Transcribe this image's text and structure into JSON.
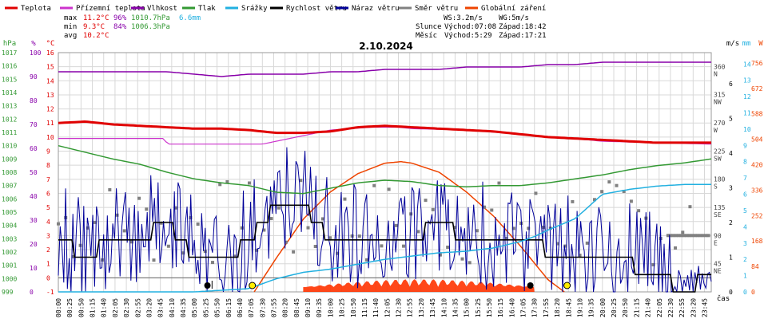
{
  "legend": [
    {
      "label": "Teplota",
      "color": "#e00000"
    },
    {
      "label": "Přízemní teplota",
      "color": "#cc33cc"
    },
    {
      "label": "Vlhkost",
      "color": "#8800aa"
    },
    {
      "label": "Tlak",
      "color": "#339933"
    },
    {
      "label": "Srážky",
      "color": "#22b0e0"
    },
    {
      "label": "Rychlost větru",
      "color": "#000000"
    },
    {
      "label": "Náraz větru",
      "color": "#000099"
    },
    {
      "label": "Směr větru",
      "color": "#808080"
    },
    {
      "label": "Globální záření",
      "color": "#ee4400"
    }
  ],
  "stats": {
    "max_label": "max",
    "max_temp": "11.2°C",
    "max_hum": "96%",
    "max_press": "1010.7hPa",
    "rain": "6.6mm",
    "min_label": "min",
    "min_temp": "9.3°C",
    "min_hum": "84%",
    "min_press": "1006.3hPa",
    "avg_label": "avg",
    "avg_temp": "10.2°C"
  },
  "wind_info": {
    "ws": "WS:3.2m/s",
    "wg": "WG:5m/s"
  },
  "sun": {
    "label": "Slunce",
    "rise": "Východ:07:08",
    "set": "Západ:18:42"
  },
  "moon": {
    "label": "Měsíc",
    "rise": "Východ:5:29",
    "set": "Západ:17:21"
  },
  "date_title": "2.10.2024",
  "unit_labels": {
    "hpa": "hPa",
    "pct": "%",
    "degc": "°C",
    "dir": "m/s",
    "mm": "mm",
    "w": "W",
    "time": "čas"
  },
  "axes": {
    "hpa": [
      "999",
      "1000",
      "1001",
      "1002",
      "1003",
      "1004",
      "1005",
      "1006",
      "1007",
      "1008",
      "1009",
      "1010",
      "1011",
      "1012",
      "1013",
      "1014",
      "1015",
      "1016",
      "1017"
    ],
    "pct": [
      "0",
      "10",
      "20",
      "30",
      "40",
      "50",
      "60",
      "70",
      "80",
      "90",
      "100"
    ],
    "degc": [
      "-1",
      "0",
      "1",
      "2",
      "3",
      "4",
      "5",
      "6",
      "7",
      "8",
      "9",
      "10",
      "11",
      "12",
      "13",
      "14",
      "15",
      "16"
    ],
    "dir_values": [
      "45",
      "90",
      "135",
      "180",
      "225",
      "270",
      "315",
      "360"
    ],
    "dir_names": [
      "NE",
      "E",
      "SE",
      "S",
      "SW",
      "W",
      "NW",
      "N"
    ],
    "ms": [
      "0",
      "1",
      "2",
      "3",
      "4",
      "5",
      "6"
    ],
    "mm": [
      "0",
      "1",
      "2",
      "3",
      "4",
      "5",
      "6",
      "7",
      "8",
      "9",
      "10",
      "11",
      "12",
      "13",
      "14"
    ],
    "w": [
      "0",
      "84",
      "168",
      "252",
      "336",
      "420",
      "504",
      "588",
      "672",
      "756"
    ]
  },
  "colors": {
    "temp": "#e00000",
    "ground": "#cc33cc",
    "hum": "#8800aa",
    "press": "#339933",
    "rain": "#22b0e0",
    "wind": "#000000",
    "gust": "#000099",
    "dir": "#808080",
    "sol": "#ee4400",
    "solfill": "#ff3300",
    "grid": "#d8d8d8",
    "hpaaxis": "#339933",
    "pctaxis": "#8800aa",
    "degaxis": "#e00000",
    "mmaxis": "#22b0e0",
    "waxis": "#ee4400"
  },
  "chart_data": {
    "type": "line",
    "title": "2.10.2024",
    "x_ticks": [
      "00:00",
      "00:25",
      "00:50",
      "01:15",
      "01:40",
      "02:05",
      "02:30",
      "02:55",
      "03:20",
      "03:45",
      "04:10",
      "04:35",
      "05:00",
      "05:25",
      "05:50",
      "06:15",
      "06:40",
      "07:05",
      "07:30",
      "07:55",
      "08:20",
      "08:45",
      "09:10",
      "09:35",
      "10:00",
      "10:25",
      "10:50",
      "11:15",
      "11:40",
      "12:05",
      "12:30",
      "12:55",
      "13:20",
      "13:45",
      "14:10",
      "14:35",
      "15:00",
      "15:25",
      "15:50",
      "16:15",
      "16:40",
      "17:05",
      "17:30",
      "17:55",
      "18:20",
      "18:45",
      "19:10",
      "19:35",
      "20:00",
      "20:25",
      "20:50",
      "21:15",
      "21:40",
      "22:05",
      "22:30",
      "22:55",
      "23:20",
      "23:45"
    ],
    "x_unit_hours": [
      0,
      0.4167,
      0.8333,
      1.25,
      1.6667,
      2.0833,
      2.5,
      2.9167,
      3.3333,
      3.75,
      4.1667,
      4.5833,
      5,
      5.4167,
      5.8333,
      6.25,
      6.6667,
      7.0833,
      7.5,
      7.9167,
      8.3333,
      8.75,
      9.1667,
      9.5833,
      10,
      10.4167,
      10.8333,
      11.25,
      11.6667,
      12.0833,
      12.5,
      12.9167,
      13.3333,
      13.75,
      14.1667,
      14.5833,
      15,
      15.4167,
      15.8333,
      16.25,
      16.6667,
      17.0833,
      17.5,
      17.9167,
      18.3333,
      18.75,
      19.1667,
      19.5833,
      20,
      20.4167,
      20.8333,
      21.25,
      21.6667,
      22.0833,
      22.5,
      22.9167,
      23.3333,
      23.75
    ],
    "series": [
      {
        "name": "Teplota",
        "unit": "°C",
        "x": [
          0,
          1,
          2,
          3,
          4,
          5,
          6,
          7,
          8,
          9,
          10,
          11,
          12,
          13,
          14,
          15,
          16,
          17,
          18,
          19,
          20,
          21,
          22,
          23,
          24
        ],
        "values": [
          11.0,
          11.1,
          10.9,
          10.8,
          10.7,
          10.6,
          10.6,
          10.5,
          10.3,
          10.3,
          10.4,
          10.7,
          10.8,
          10.7,
          10.6,
          10.5,
          10.4,
          10.2,
          10.0,
          9.9,
          9.8,
          9.7,
          9.6,
          9.6,
          9.6
        ]
      },
      {
        "name": "Přízemní teplota",
        "unit": "°C",
        "x": [
          0,
          2,
          3.9,
          4,
          7.5,
          8,
          10,
          11.5,
          12.5,
          13,
          15,
          17,
          18,
          19.5,
          20,
          22,
          24
        ],
        "values": [
          9.9,
          9.9,
          9.9,
          9.5,
          9.5,
          9.7,
          10.5,
          10.7,
          10.7,
          10.6,
          10.5,
          10.2,
          10.0,
          9.8,
          9.7,
          9.6,
          9.5
        ]
      },
      {
        "name": "Vlhkost",
        "unit": "%",
        "x": [
          0,
          2,
          4,
          5,
          6,
          7,
          8,
          9,
          10,
          11,
          12,
          13,
          14,
          15,
          16,
          17,
          18,
          19,
          20,
          22,
          24
        ],
        "values": [
          92,
          92,
          92,
          91,
          90,
          91,
          91,
          91,
          92,
          92,
          93,
          93,
          93,
          94,
          94,
          94,
          95,
          95,
          96,
          96,
          96
        ]
      },
      {
        "name": "Tlak",
        "unit": "hPa",
        "x": [
          0,
          1,
          2,
          3,
          4,
          5,
          6,
          7,
          8,
          9,
          10,
          11,
          12,
          13,
          14,
          15,
          16,
          17,
          18,
          19,
          20,
          21,
          22,
          23,
          24
        ],
        "values": [
          1010.0,
          1009.5,
          1009.0,
          1008.6,
          1008.0,
          1007.5,
          1007.2,
          1007.0,
          1006.5,
          1006.4,
          1006.8,
          1007.2,
          1007.4,
          1007.3,
          1007.0,
          1006.9,
          1007.0,
          1007.0,
          1007.2,
          1007.5,
          1007.8,
          1008.2,
          1008.5,
          1008.7,
          1009.0
        ]
      },
      {
        "name": "Srážky",
        "unit": "mm",
        "x": [
          0,
          5,
          7,
          8,
          9,
          10,
          11,
          12,
          13,
          14,
          15,
          16,
          17,
          17.5,
          18,
          19,
          20,
          21,
          22,
          23,
          24
        ],
        "values": [
          0,
          0,
          0.2,
          0.8,
          1.2,
          1.4,
          1.7,
          2.0,
          2.2,
          2.4,
          2.5,
          2.7,
          3.1,
          3.4,
          3.8,
          4.5,
          6.0,
          6.3,
          6.5,
          6.6,
          6.6
        ]
      },
      {
        "name": "Rychlost větru",
        "unit": "m/s",
        "x": [
          0,
          1,
          2,
          3,
          4,
          5,
          6,
          7,
          8,
          9,
          10,
          11,
          12,
          13,
          14,
          15,
          16,
          17,
          18,
          19,
          20,
          21,
          22,
          23,
          24
        ],
        "values": [
          1.5,
          1.0,
          1.5,
          1.5,
          2,
          1.0,
          0.8,
          1.5,
          2.5,
          2.5,
          1.5,
          1.5,
          1.5,
          1.5,
          2,
          1.5,
          1.5,
          1.5,
          1.2,
          1.0,
          1.0,
          0.8,
          0.5,
          0,
          0.5
        ]
      },
      {
        "name": "Globální záření",
        "unit": "W",
        "x": [
          7.2,
          8,
          9,
          10,
          11,
          12,
          12.6,
          13,
          14,
          15,
          16,
          17,
          18,
          18.6
        ],
        "values": [
          0,
          110,
          240,
          330,
          390,
          425,
          430,
          425,
          395,
          330,
          250,
          150,
          40,
          0
        ]
      }
    ]
  }
}
